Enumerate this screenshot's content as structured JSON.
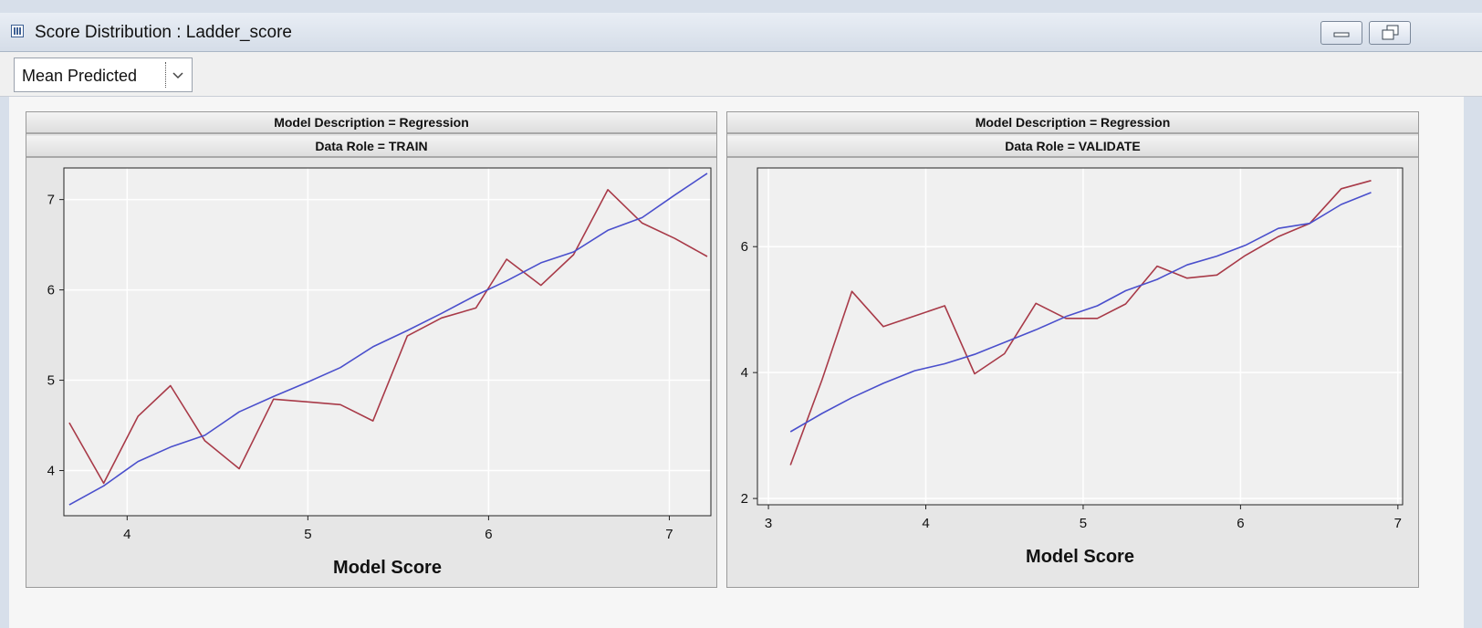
{
  "window": {
    "title": "Score Distribution : Ladder_score",
    "icon": "chart-window-icon",
    "buttons": [
      "minimize-icon",
      "restore-icon"
    ]
  },
  "toolbar": {
    "statistic_select": {
      "value": "Mean Predicted"
    }
  },
  "colors": {
    "mean_target": "#a83a48",
    "mean_predicted": "#4a4fcc",
    "plot_background": "#f0f0f0",
    "gridline": "#ffffff"
  },
  "chart_data": [
    {
      "type": "line",
      "strips": [
        "Model Description = Regression",
        "Data Role = TRAIN"
      ],
      "xlabel": "Model Score",
      "ylabel": "",
      "xlim": [
        3.65,
        7.23
      ],
      "ylim": [
        3.5,
        7.35
      ],
      "xticks": [
        4,
        5,
        6,
        7
      ],
      "yticks": [
        4,
        5,
        6,
        7
      ],
      "grid": true,
      "series": [
        {
          "color": "#a83a48",
          "x": [
            3.68,
            3.87,
            4.06,
            4.24,
            4.43,
            4.62,
            4.81,
            5.0,
            5.18,
            5.36,
            5.55,
            5.74,
            5.93,
            6.1,
            6.29,
            6.47,
            6.66,
            6.85,
            7.03,
            7.21
          ],
          "y": [
            4.53,
            3.86,
            4.6,
            4.94,
            4.33,
            4.02,
            4.79,
            4.76,
            4.73,
            4.55,
            5.49,
            5.69,
            5.8,
            6.34,
            6.05,
            6.39,
            7.11,
            6.74,
            6.57,
            6.37
          ]
        },
        {
          "color": "#4a4fcc",
          "x": [
            3.68,
            3.87,
            4.06,
            4.24,
            4.43,
            4.62,
            4.81,
            5.0,
            5.18,
            5.36,
            5.55,
            5.74,
            5.93,
            6.1,
            6.29,
            6.47,
            6.66,
            6.85,
            7.03,
            7.21
          ],
          "y": [
            3.62,
            3.83,
            4.1,
            4.26,
            4.39,
            4.65,
            4.82,
            4.98,
            5.14,
            5.37,
            5.55,
            5.74,
            5.94,
            6.1,
            6.3,
            6.42,
            6.66,
            6.8,
            7.05,
            7.29
          ]
        }
      ]
    },
    {
      "type": "line",
      "strips": [
        "Model Description = Regression",
        "Data Role = VALIDATE"
      ],
      "xlabel": "Model Score",
      "ylabel": "",
      "xlim": [
        2.93,
        7.03
      ],
      "ylim": [
        1.9,
        7.25
      ],
      "xticks": [
        3,
        4,
        5,
        6,
        7
      ],
      "yticks": [
        2,
        4,
        6
      ],
      "grid": true,
      "series": [
        {
          "color": "#a83a48",
          "x": [
            3.14,
            3.34,
            3.53,
            3.73,
            3.93,
            4.12,
            4.31,
            4.5,
            4.7,
            4.89,
            5.09,
            5.27,
            5.47,
            5.66,
            5.85,
            6.03,
            6.24,
            6.44,
            6.64,
            6.83
          ],
          "y": [
            2.53,
            3.88,
            5.29,
            4.73,
            4.9,
            5.06,
            3.98,
            4.3,
            5.1,
            4.86,
            4.86,
            5.09,
            5.69,
            5.5,
            5.55,
            5.86,
            6.16,
            6.37,
            6.92,
            7.05
          ]
        },
        {
          "color": "#4a4fcc",
          "x": [
            3.14,
            3.34,
            3.53,
            3.73,
            3.93,
            4.12,
            4.31,
            4.5,
            4.7,
            4.89,
            5.09,
            5.27,
            5.47,
            5.66,
            5.85,
            6.03,
            6.24,
            6.44,
            6.64,
            6.83
          ],
          "y": [
            3.06,
            3.35,
            3.6,
            3.83,
            4.03,
            4.14,
            4.29,
            4.48,
            4.68,
            4.89,
            5.06,
            5.3,
            5.48,
            5.71,
            5.85,
            6.02,
            6.29,
            6.37,
            6.67,
            6.86
          ]
        }
      ]
    }
  ]
}
